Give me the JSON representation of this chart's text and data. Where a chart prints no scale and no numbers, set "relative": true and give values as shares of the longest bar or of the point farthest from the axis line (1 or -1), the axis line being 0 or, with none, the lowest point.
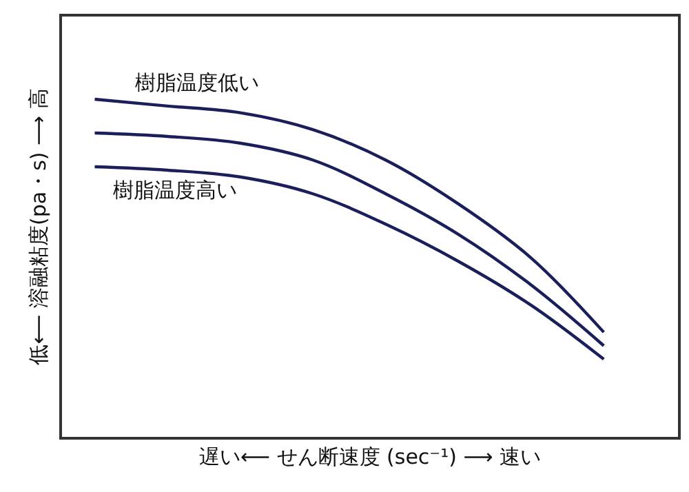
{
  "chart_data": {
    "type": "line",
    "relative": true,
    "xlabel": "遅い⟵ せん断速度 (sec⁻¹) ⟶ 速い",
    "ylabel": "低⟵ 溶融粘度(pa・s) ⟶ 高",
    "categories": [
      null,
      null,
      null,
      null,
      null,
      null,
      null,
      null
    ],
    "series": [
      {
        "name": "樹脂温度低い",
        "color": "#1a1f5c",
        "values": [
          1.0,
          0.98,
          0.96,
          0.91,
          0.82,
          0.69,
          0.53,
          0.31
        ]
      },
      {
        "color": "#1a1f5c",
        "values": [
          0.9,
          0.89,
          0.87,
          0.82,
          0.72,
          0.6,
          0.45,
          0.27
        ]
      },
      {
        "name": "樹脂温度高い",
        "color": "#1a1f5c",
        "values": [
          0.8,
          0.79,
          0.77,
          0.72,
          0.63,
          0.52,
          0.39,
          0.23
        ]
      }
    ],
    "legend": false,
    "marker": "none",
    "line_style": "solid"
  }
}
